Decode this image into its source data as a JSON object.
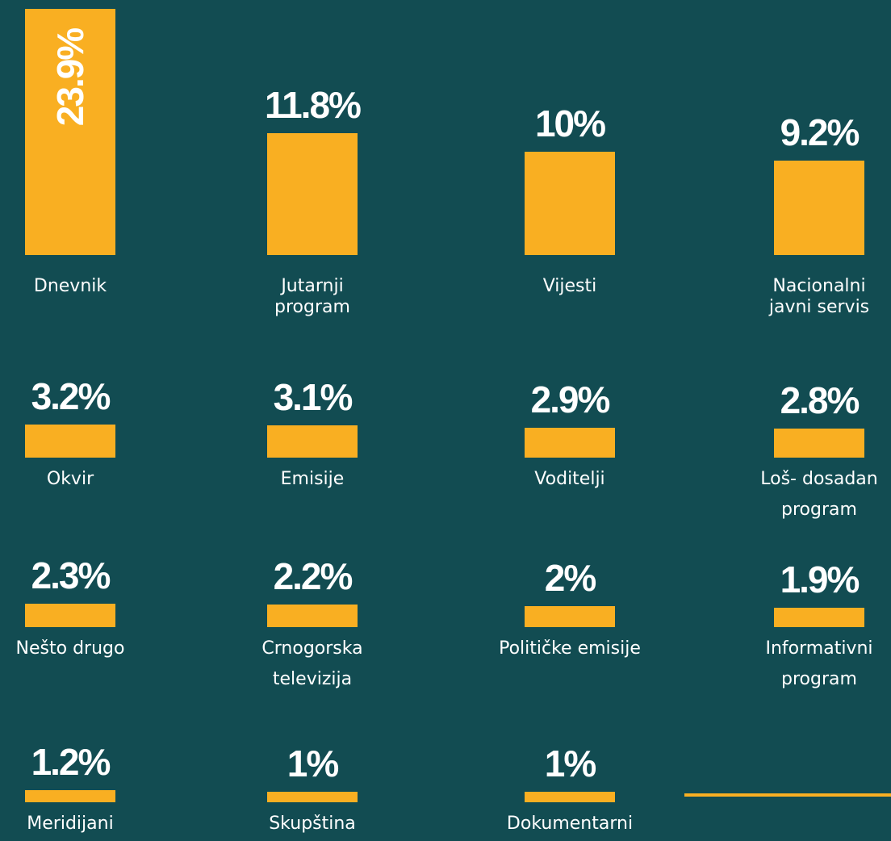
{
  "chart_data": {
    "type": "bar",
    "color": "#f9af22",
    "categories": [
      "Dnevnik",
      "Jutarnji\nprogram",
      "Vijesti",
      "Nacionalni\njavni servis",
      "Okvir",
      "Emisije",
      "Voditelji",
      "Loš- dosadan\nprogram",
      "Nešto drugo",
      "Crnogorska\ntelevizija",
      "Političke emisije",
      "Informativni\nprogram",
      "Meridijani",
      "Skupština",
      "Dokumentarni"
    ],
    "values": [
      23.9,
      11.8,
      10,
      9.2,
      3.2,
      3.1,
      2.9,
      2.8,
      2.3,
      2.2,
      2,
      1.9,
      1.2,
      1,
      1
    ],
    "value_labels": [
      "23.9%",
      "11.8%",
      "10%",
      "9.2%",
      "3.2%",
      "3.1%",
      "2.9%",
      "2.8%",
      "2.3%",
      "2.2%",
      "2%",
      "1.9%",
      "1.2%",
      "1%",
      "1%"
    ]
  }
}
